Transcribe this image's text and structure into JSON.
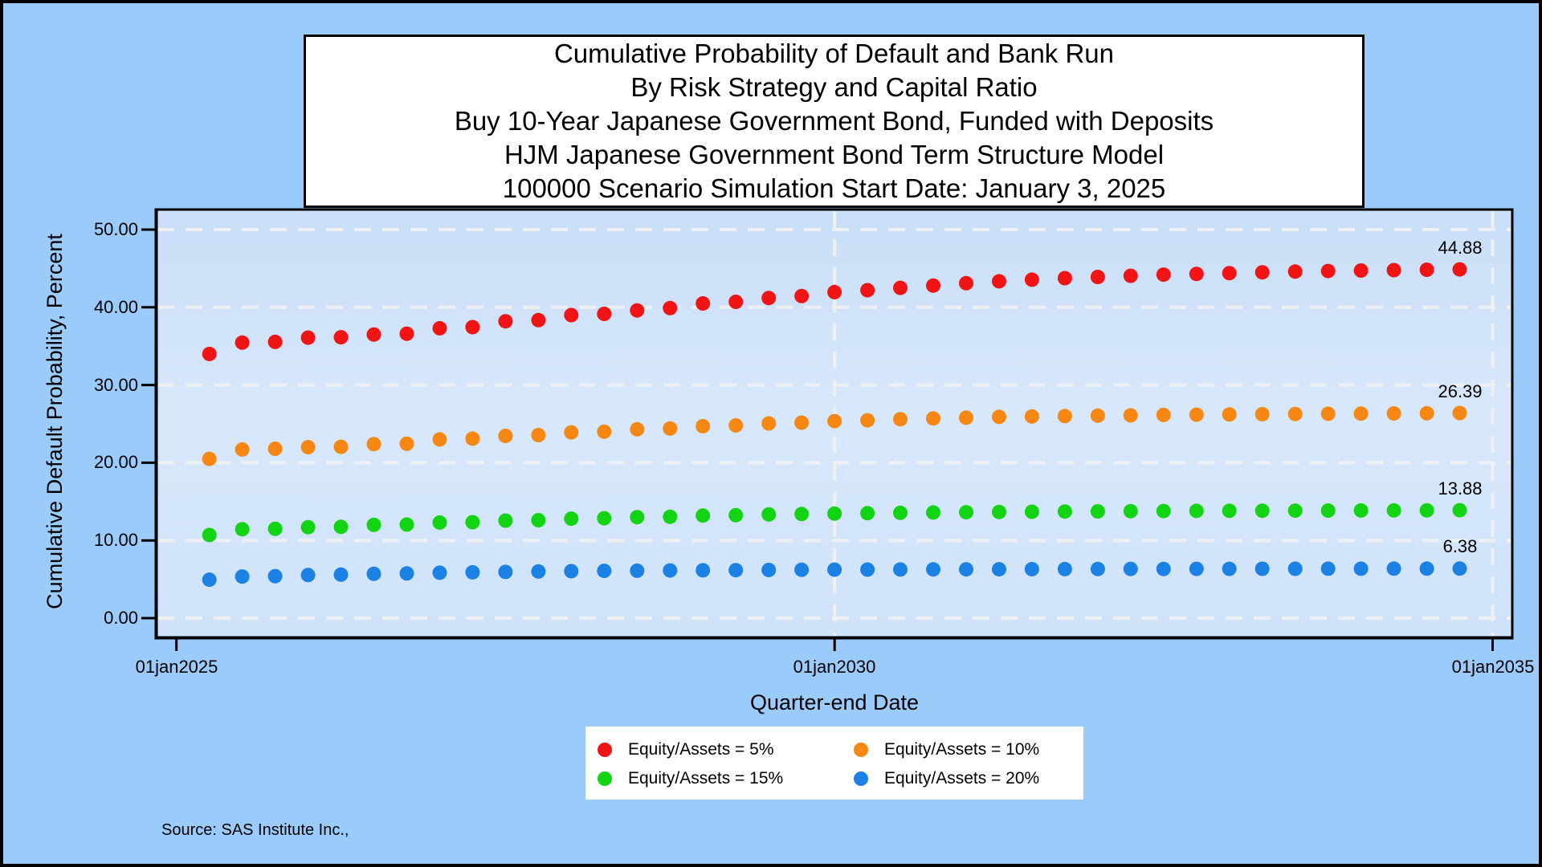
{
  "title_lines": [
    "Cumulative Probability of Default and Bank Run",
    "By Risk Strategy and Capital Ratio",
    "Buy 10-Year Japanese Government Bond, Funded with Deposits",
    "HJM Japanese Government Bond Term Structure Model",
    "100000 Scenario Simulation Start Date: January 3, 2025"
  ],
  "source_note": "Source: SAS Institute Inc.,",
  "colors": {
    "canvas_background": "#9BCBFB",
    "plot_fill_top": "#C9DEF7",
    "plot_fill_mid": "#D8E8FC",
    "plot_fill_bottom": "#CEE2F9",
    "gridline": "#F1F1F1",
    "axis": "#000000",
    "title_box_background": "#FFFFFF",
    "legend_background": "#FFFFFF"
  },
  "chart_data": {
    "type": "scatter",
    "title": "Cumulative Probability of Default and Bank Run By Risk Strategy and Capital Ratio",
    "xlabel": "Quarter-end Date",
    "ylabel": "Cumulative Default Probability, Percent",
    "ylim": [
      0,
      50
    ],
    "y_ticks": [
      "50.00",
      "40.00",
      "30.00",
      "20.00",
      "10.00",
      "0.00"
    ],
    "y_tick_values": [
      50,
      40,
      30,
      20,
      10,
      0
    ],
    "x_ticks": [
      "01jan2025",
      "01jan2030",
      "01jan2035"
    ],
    "grid": "dashed-white, horizontal at every y tick, vertical at 01jan2030 and 01jan2035",
    "legend_position": "bottom-center",
    "x": [
      "31mar2025",
      "30jun2025",
      "30sep2025",
      "31dec2025",
      "31mar2026",
      "30jun2026",
      "30sep2026",
      "31dec2026",
      "31mar2027",
      "30jun2027",
      "30sep2027",
      "31dec2027",
      "31mar2028",
      "30jun2028",
      "30sep2028",
      "31dec2028",
      "31mar2029",
      "30jun2029",
      "30sep2029",
      "31dec2029",
      "31mar2030",
      "30jun2030",
      "30sep2030",
      "31dec2030",
      "31mar2031",
      "30jun2031",
      "30sep2031",
      "31dec2031",
      "31mar2032",
      "30jun2032",
      "30sep2032",
      "31dec2032",
      "31mar2033",
      "30jun2033",
      "30sep2033",
      "31dec2033",
      "31mar2034",
      "30jun2034",
      "30sep2034"
    ],
    "series": [
      {
        "name": "Equity/Assets = 5%",
        "color": "#F01414",
        "end_label": "44.88",
        "values": [
          34.0,
          35.45,
          35.55,
          36.1,
          36.15,
          36.5,
          36.6,
          37.3,
          37.45,
          38.2,
          38.35,
          39.0,
          39.15,
          39.6,
          39.9,
          40.5,
          40.7,
          41.2,
          41.45,
          41.95,
          42.2,
          42.5,
          42.8,
          43.1,
          43.35,
          43.55,
          43.75,
          43.9,
          44.05,
          44.2,
          44.3,
          44.4,
          44.5,
          44.6,
          44.67,
          44.73,
          44.78,
          44.83,
          44.88
        ]
      },
      {
        "name": "Equity/Assets = 10%",
        "color": "#F68712",
        "end_label": "26.39",
        "values": [
          20.5,
          21.7,
          21.8,
          22.0,
          22.05,
          22.4,
          22.45,
          23.0,
          23.1,
          23.45,
          23.55,
          23.9,
          24.0,
          24.3,
          24.4,
          24.7,
          24.8,
          25.05,
          25.15,
          25.35,
          25.45,
          25.6,
          25.7,
          25.8,
          25.9,
          25.95,
          26.0,
          26.05,
          26.1,
          26.15,
          26.18,
          26.21,
          26.24,
          26.27,
          26.3,
          26.32,
          26.34,
          26.36,
          26.39
        ]
      },
      {
        "name": "Equity/Assets = 15%",
        "color": "#12D412",
        "end_label": "13.88",
        "values": [
          10.7,
          11.45,
          11.5,
          11.7,
          11.75,
          12.0,
          12.05,
          12.3,
          12.35,
          12.55,
          12.6,
          12.8,
          12.85,
          13.0,
          13.05,
          13.2,
          13.25,
          13.35,
          13.4,
          13.45,
          13.5,
          13.55,
          13.6,
          13.63,
          13.66,
          13.69,
          13.72,
          13.74,
          13.76,
          13.78,
          13.8,
          13.81,
          13.82,
          13.83,
          13.84,
          13.85,
          13.86,
          13.87,
          13.88
        ]
      },
      {
        "name": "Equity/Assets = 20%",
        "color": "#1B81E5",
        "end_label": "6.38",
        "values": [
          4.95,
          5.35,
          5.4,
          5.55,
          5.6,
          5.7,
          5.75,
          5.85,
          5.9,
          5.95,
          6.0,
          6.04,
          6.08,
          6.11,
          6.14,
          6.16,
          6.18,
          6.2,
          6.22,
          6.24,
          6.25,
          6.26,
          6.27,
          6.28,
          6.29,
          6.3,
          6.31,
          6.32,
          6.33,
          6.33,
          6.34,
          6.34,
          6.35,
          6.35,
          6.36,
          6.36,
          6.37,
          6.37,
          6.38
        ]
      }
    ]
  }
}
